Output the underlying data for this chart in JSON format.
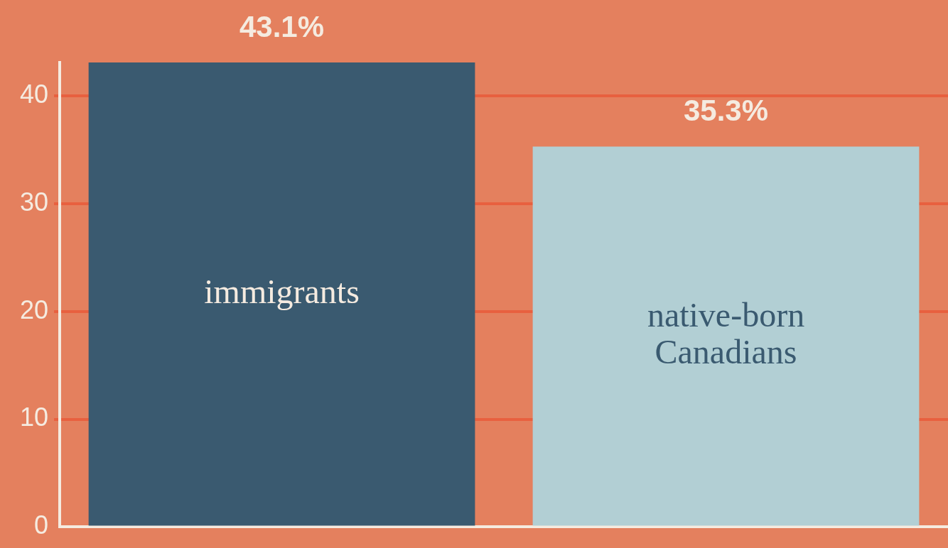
{
  "chart_data": {
    "type": "bar",
    "categories": [
      "immigrants",
      "native-born Canadians"
    ],
    "values": [
      43.1,
      35.3
    ],
    "colors": [
      "#3a5a70",
      "#b2cfd4"
    ],
    "value_labels": [
      "43.1%",
      "35.3%"
    ],
    "ylim": [
      0,
      43.1
    ],
    "yticks": [
      0,
      10,
      20,
      30,
      40
    ],
    "grid": "y",
    "tick_labels": "y",
    "legend": false
  }
}
